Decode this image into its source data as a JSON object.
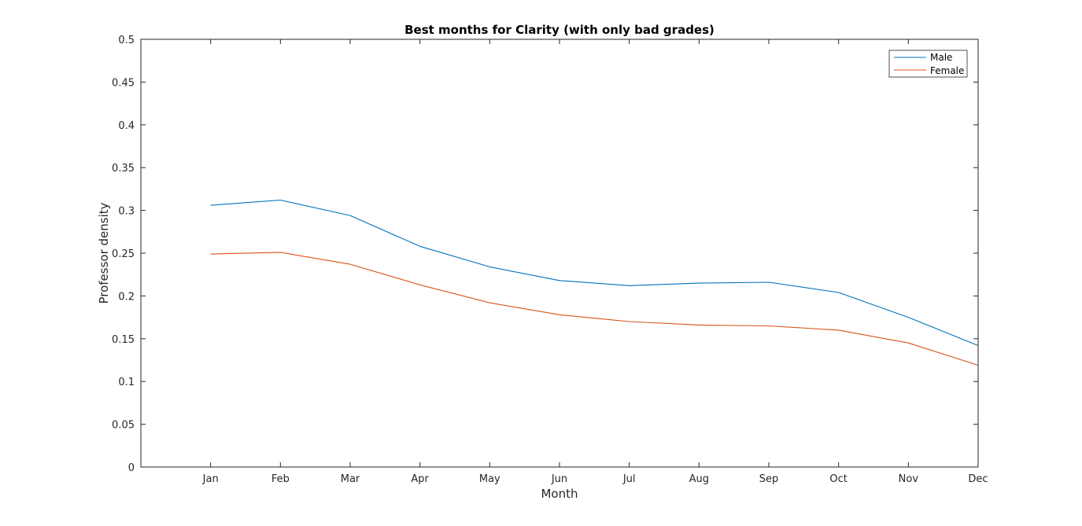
{
  "chart_data": {
    "type": "line",
    "title": "Best months for Clarity (with only bad grades)",
    "xlabel": "Month",
    "ylabel": "Professor density",
    "categories": [
      "Jan",
      "Feb",
      "Mar",
      "Apr",
      "May",
      "Jun",
      "Jul",
      "Aug",
      "Sep",
      "Oct",
      "Nov",
      "Dec"
    ],
    "xlim": [
      0,
      12
    ],
    "ylim": [
      0,
      0.5
    ],
    "yticks": [
      "0",
      "0.05",
      "0.1",
      "0.15",
      "0.2",
      "0.25",
      "0.3",
      "0.35",
      "0.4",
      "0.45",
      "0.5"
    ],
    "grid": false,
    "legend_position": "top-right",
    "series": [
      {
        "name": "Male",
        "color": "#0072bd",
        "values": [
          0.306,
          0.312,
          0.294,
          0.258,
          0.234,
          0.218,
          0.212,
          0.215,
          0.216,
          0.204,
          0.175,
          0.142
        ]
      },
      {
        "name": "Female",
        "color": "#d95319",
        "values": [
          0.249,
          0.251,
          0.237,
          0.213,
          0.192,
          0.178,
          0.17,
          0.166,
          0.165,
          0.16,
          0.145,
          0.119
        ]
      }
    ]
  }
}
